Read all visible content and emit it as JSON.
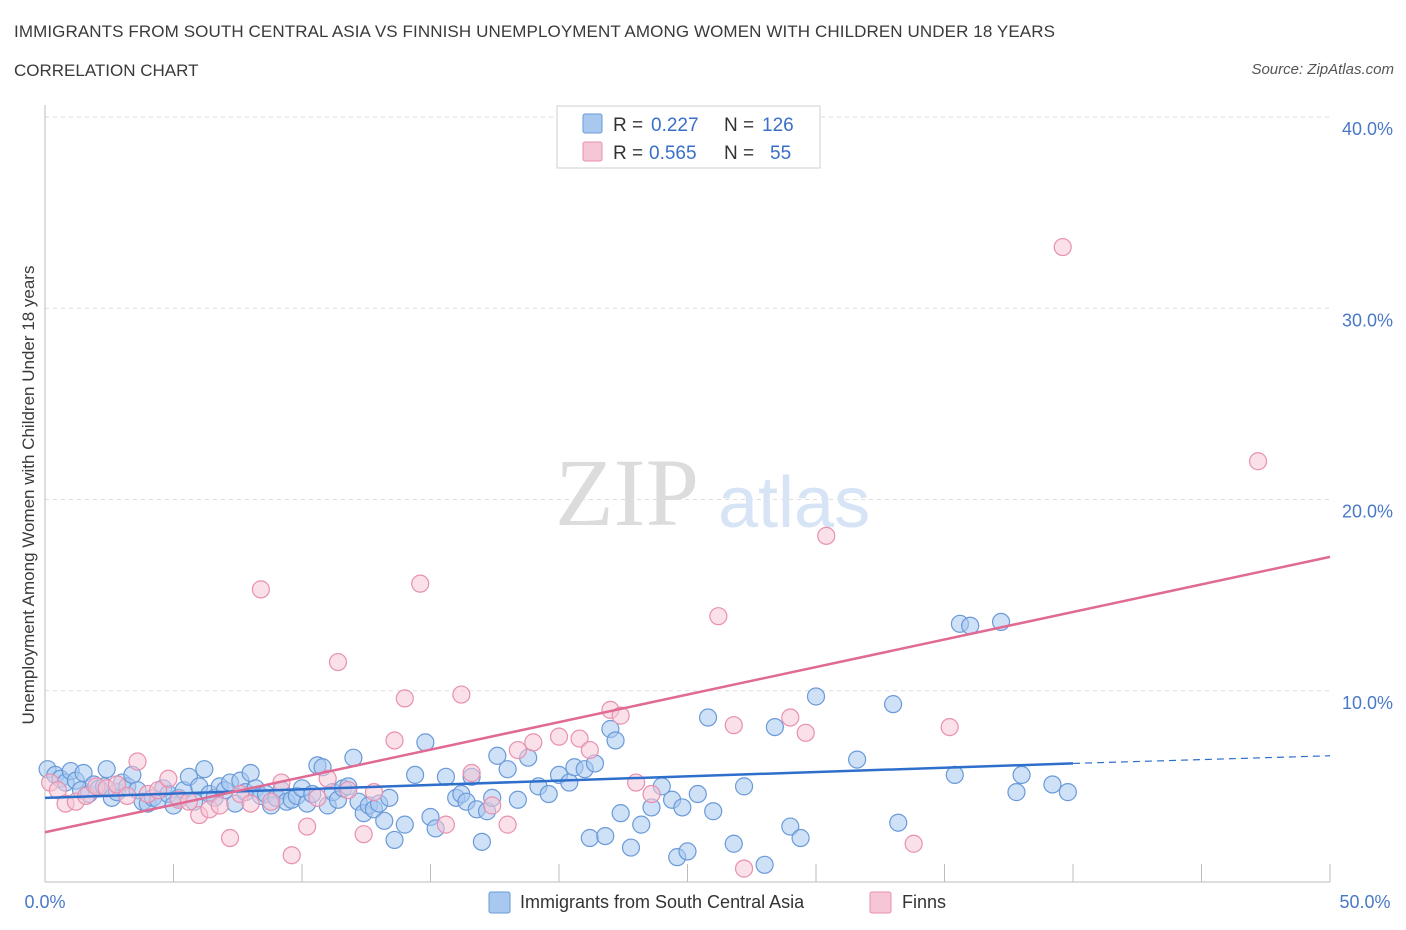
{
  "header": {
    "title": "IMMIGRANTS FROM SOUTH CENTRAL ASIA VS FINNISH UNEMPLOYMENT AMONG WOMEN WITH CHILDREN UNDER 18 YEARS",
    "subtitle": "CORRELATION CHART",
    "source": "Source: ZipAtlas.com"
  },
  "watermark": {
    "zip": "ZIP",
    "atlas": "atlas"
  },
  "legend": {
    "rows": [
      {
        "r_label": "R =",
        "r_value": "0.227",
        "n_label": "N =",
        "n_value": "126",
        "color": "#a8c8f0"
      },
      {
        "r_label": "R =",
        "r_value": "0.565",
        "n_label": "N =",
        "n_value": "55",
        "color": "#f4b8cc"
      }
    ]
  },
  "bottom_legend": {
    "series1": "Immigrants from South Central Asia",
    "series2": "Finns"
  },
  "colors": {
    "blue_fill": "#a8c8f0",
    "blue_stroke": "#6a9ad8",
    "blue_line": "#2f6fcc",
    "pink_fill": "#f6c6d6",
    "pink_stroke": "#e890b0",
    "pink_line": "#e06a94",
    "tick_text": "#4a78c8",
    "grid": "#dddddd"
  },
  "chart_data": {
    "type": "scatter",
    "title": "IMMIGRANTS FROM SOUTH CENTRAL ASIA VS FINNISH UNEMPLOYMENT AMONG WOMEN WITH CHILDREN UNDER 18 YEARS",
    "xlabel": "",
    "ylabel": "Unemployment Among Women with Children Under 18 years",
    "xlim": [
      0,
      50
    ],
    "ylim": [
      0,
      40
    ],
    "x_tick_labels": [
      "0.0%",
      "50.0%"
    ],
    "y_tick_values": [
      10,
      20,
      30,
      40
    ],
    "y_tick_labels": [
      "10.0%",
      "20.0%",
      "30.0%",
      "40.0%"
    ],
    "grid": true,
    "legend_position": "top-center",
    "series": [
      {
        "name": "Immigrants from South Central Asia",
        "r": 0.227,
        "n": 126,
        "trend": {
          "x": [
            0,
            40
          ],
          "y": [
            4.4,
            6.2
          ],
          "dashed_extension": {
            "x": [
              40,
              50
            ],
            "y": [
              6.2,
              6.6
            ]
          }
        },
        "points": [
          [
            0.1,
            5.9
          ],
          [
            0.4,
            5.6
          ],
          [
            0.6,
            5.4
          ],
          [
            0.8,
            5.2
          ],
          [
            1.0,
            5.8
          ],
          [
            1.2,
            5.3
          ],
          [
            1.4,
            4.8
          ],
          [
            1.5,
            5.7
          ],
          [
            1.7,
            4.6
          ],
          [
            1.9,
            5.1
          ],
          [
            2.1,
            4.9
          ],
          [
            2.3,
            5.0
          ],
          [
            2.4,
            5.9
          ],
          [
            2.6,
            4.4
          ],
          [
            2.8,
            4.7
          ],
          [
            3.0,
            5.2
          ],
          [
            3.2,
            5.0
          ],
          [
            3.4,
            5.6
          ],
          [
            3.6,
            4.8
          ],
          [
            3.8,
            4.2
          ],
          [
            4.0,
            4.1
          ],
          [
            4.2,
            4.4
          ],
          [
            4.4,
            4.3
          ],
          [
            4.6,
            4.9
          ],
          [
            4.8,
            4.6
          ],
          [
            5.0,
            4.0
          ],
          [
            5.2,
            4.4
          ],
          [
            5.4,
            4.8
          ],
          [
            5.6,
            5.5
          ],
          [
            5.8,
            4.2
          ],
          [
            6.0,
            5.0
          ],
          [
            6.2,
            5.9
          ],
          [
            6.4,
            4.6
          ],
          [
            6.6,
            4.4
          ],
          [
            6.8,
            5.0
          ],
          [
            7.0,
            4.8
          ],
          [
            7.2,
            5.2
          ],
          [
            7.4,
            4.1
          ],
          [
            7.6,
            5.3
          ],
          [
            7.8,
            4.7
          ],
          [
            8.0,
            5.7
          ],
          [
            8.2,
            4.9
          ],
          [
            8.4,
            4.5
          ],
          [
            8.6,
            4.6
          ],
          [
            8.8,
            4.0
          ],
          [
            9.0,
            4.4
          ],
          [
            9.2,
            4.8
          ],
          [
            9.4,
            4.2
          ],
          [
            9.6,
            4.3
          ],
          [
            9.8,
            4.5
          ],
          [
            10.0,
            4.9
          ],
          [
            10.2,
            4.1
          ],
          [
            10.4,
            4.6
          ],
          [
            10.6,
            6.1
          ],
          [
            10.8,
            6.0
          ],
          [
            11.0,
            4.0
          ],
          [
            11.2,
            4.7
          ],
          [
            11.4,
            4.3
          ],
          [
            11.6,
            4.9
          ],
          [
            11.8,
            5.0
          ],
          [
            12.0,
            6.5
          ],
          [
            12.2,
            4.2
          ],
          [
            12.4,
            3.6
          ],
          [
            12.6,
            4.0
          ],
          [
            12.8,
            3.8
          ],
          [
            13.0,
            4.1
          ],
          [
            13.2,
            3.2
          ],
          [
            13.4,
            4.4
          ],
          [
            13.6,
            2.2
          ],
          [
            14.0,
            3.0
          ],
          [
            14.4,
            5.6
          ],
          [
            14.8,
            7.3
          ],
          [
            15.0,
            3.4
          ],
          [
            15.2,
            2.8
          ],
          [
            15.6,
            5.5
          ],
          [
            16.0,
            4.4
          ],
          [
            16.2,
            4.6
          ],
          [
            16.4,
            4.2
          ],
          [
            16.6,
            5.5
          ],
          [
            16.8,
            3.8
          ],
          [
            17.0,
            2.1
          ],
          [
            17.2,
            3.7
          ],
          [
            17.4,
            4.4
          ],
          [
            17.6,
            6.6
          ],
          [
            18.0,
            5.9
          ],
          [
            18.4,
            4.3
          ],
          [
            18.8,
            6.5
          ],
          [
            19.2,
            5.0
          ],
          [
            19.6,
            4.6
          ],
          [
            20.0,
            5.6
          ],
          [
            20.4,
            5.2
          ],
          [
            20.6,
            6.0
          ],
          [
            21.0,
            5.9
          ],
          [
            21.2,
            2.3
          ],
          [
            21.4,
            6.2
          ],
          [
            21.8,
            2.4
          ],
          [
            22.0,
            8.0
          ],
          [
            22.2,
            7.4
          ],
          [
            22.4,
            3.6
          ],
          [
            22.8,
            1.8
          ],
          [
            23.2,
            3.0
          ],
          [
            23.6,
            3.9
          ],
          [
            24.0,
            5.0
          ],
          [
            24.4,
            4.3
          ],
          [
            24.6,
            1.3
          ],
          [
            24.8,
            3.9
          ],
          [
            25.0,
            1.6
          ],
          [
            25.4,
            4.6
          ],
          [
            25.8,
            8.6
          ],
          [
            26.0,
            3.7
          ],
          [
            26.8,
            2.0
          ],
          [
            27.2,
            5.0
          ],
          [
            28.0,
            0.9
          ],
          [
            28.4,
            8.1
          ],
          [
            29.0,
            2.9
          ],
          [
            29.4,
            2.3
          ],
          [
            30.0,
            9.7
          ],
          [
            31.6,
            6.4
          ],
          [
            33.0,
            9.3
          ],
          [
            33.2,
            3.1
          ],
          [
            35.4,
            5.6
          ],
          [
            35.6,
            13.5
          ],
          [
            36.0,
            13.4
          ],
          [
            37.2,
            13.6
          ],
          [
            37.8,
            4.7
          ],
          [
            38.0,
            5.6
          ],
          [
            39.2,
            5.1
          ],
          [
            39.8,
            4.7
          ]
        ]
      },
      {
        "name": "Finns",
        "r": 0.565,
        "n": 55,
        "trend": {
          "x": [
            0,
            50
          ],
          "y": [
            2.6,
            17.0
          ]
        },
        "points": [
          [
            0.2,
            5.2
          ],
          [
            0.5,
            4.8
          ],
          [
            0.8,
            4.1
          ],
          [
            1.2,
            4.2
          ],
          [
            1.6,
            4.5
          ],
          [
            2.0,
            5.0
          ],
          [
            2.4,
            4.9
          ],
          [
            2.8,
            5.1
          ],
          [
            3.2,
            4.5
          ],
          [
            3.6,
            6.3
          ],
          [
            4.0,
            4.6
          ],
          [
            4.4,
            4.8
          ],
          [
            4.8,
            5.4
          ],
          [
            5.2,
            4.3
          ],
          [
            5.6,
            4.2
          ],
          [
            6.0,
            3.5
          ],
          [
            6.4,
            3.8
          ],
          [
            6.8,
            4.0
          ],
          [
            7.2,
            2.3
          ],
          [
            7.6,
            4.6
          ],
          [
            8.0,
            4.1
          ],
          [
            8.4,
            15.3
          ],
          [
            8.8,
            4.2
          ],
          [
            9.2,
            5.2
          ],
          [
            9.6,
            1.4
          ],
          [
            10.2,
            2.9
          ],
          [
            10.6,
            4.4
          ],
          [
            11.0,
            5.4
          ],
          [
            11.4,
            11.5
          ],
          [
            11.8,
            4.8
          ],
          [
            12.4,
            2.5
          ],
          [
            12.8,
            4.7
          ],
          [
            13.6,
            7.4
          ],
          [
            14.0,
            9.6
          ],
          [
            14.6,
            15.6
          ],
          [
            15.6,
            3.0
          ],
          [
            16.2,
            9.8
          ],
          [
            16.6,
            5.7
          ],
          [
            17.4,
            4.0
          ],
          [
            18.0,
            3.0
          ],
          [
            18.4,
            6.9
          ],
          [
            19.0,
            7.3
          ],
          [
            20.0,
            7.6
          ],
          [
            20.8,
            7.5
          ],
          [
            21.2,
            6.9
          ],
          [
            22.0,
            9.0
          ],
          [
            22.4,
            8.7
          ],
          [
            23.0,
            5.2
          ],
          [
            23.6,
            4.6
          ],
          [
            26.2,
            13.9
          ],
          [
            26.8,
            8.2
          ],
          [
            27.2,
            0.7
          ],
          [
            29.0,
            8.6
          ],
          [
            29.6,
            7.8
          ],
          [
            30.4,
            18.1
          ],
          [
            33.8,
            2.0
          ],
          [
            35.2,
            8.1
          ],
          [
            39.6,
            33.2
          ],
          [
            47.2,
            22.0
          ]
        ]
      }
    ]
  }
}
